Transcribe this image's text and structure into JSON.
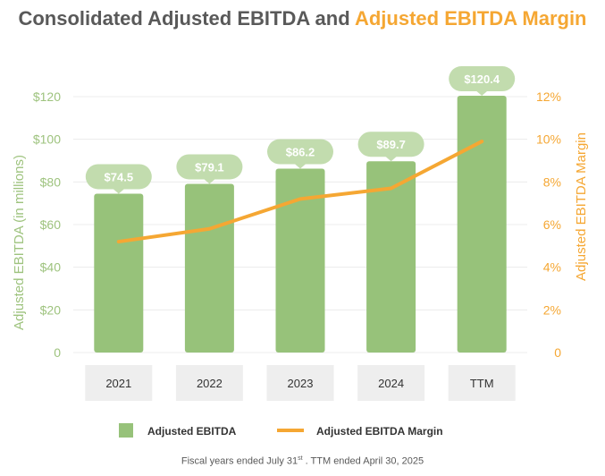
{
  "title": {
    "part1": "Consolidated Adjusted EBITDA",
    "connector": "and",
    "part2": "Adjusted EBITDA Margin"
  },
  "footnote": {
    "prefix": "Fiscal years  ended July 31",
    "superscript": "st",
    "suffix": " .  TTM ended April 30, 2025"
  },
  "colors": {
    "bar": "#97c27a",
    "bubble": "#c2dcae",
    "line": "#f5a733",
    "label_box": "#eeeeee",
    "axis_left": "#9ec37e",
    "axis_right": "#f5a733",
    "title": "#595959"
  },
  "chart_data": {
    "type": "bar",
    "categories": [
      "2021",
      "2022",
      "2023",
      "2024",
      "TTM"
    ],
    "series": [
      {
        "name": "Adjusted EBITDA",
        "axis": "left",
        "values": [
          74.5,
          79.1,
          86.2,
          89.7,
          120.4
        ],
        "labels": [
          "$74.5",
          "$79.1",
          "$86.2",
          "$89.7",
          "$120.4"
        ]
      },
      {
        "name": "Adjusted EBITDA Margin",
        "axis": "right",
        "type": "line",
        "values": [
          5.2,
          5.8,
          7.2,
          7.7,
          9.9
        ]
      }
    ],
    "ylabel": "Adjusted EBITDA (in millions)",
    "ylim": [
      0,
      120
    ],
    "yticks": [
      "0",
      "$20",
      "$40",
      "$60",
      "$80",
      "$100",
      "$120"
    ],
    "y2label": "Adjusted EBITDA Margin",
    "y2lim": [
      0,
      12
    ],
    "y2ticks": [
      "0",
      "2%",
      "4%",
      "6%",
      "8%",
      "10%",
      "12%"
    ],
    "legend": [
      "Adjusted EBITDA",
      "Adjusted EBITDA Margin"
    ],
    "legend_position": "bottom"
  }
}
